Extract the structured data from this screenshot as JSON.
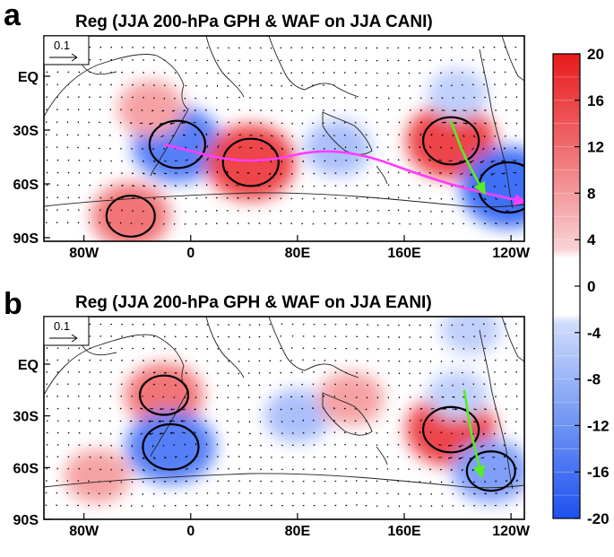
{
  "chart_data": [
    {
      "type": "heatmap",
      "panel_label": "a",
      "title": "Reg (JJA 200-hPa GPH & WAF on JJA CANI)",
      "x_tick_labels": [
        "80W",
        "0",
        "80E",
        "160E",
        "120W"
      ],
      "y_tick_labels": [
        "EQ",
        "30S",
        "60S",
        "90S"
      ],
      "reference_vector_label": "0.1",
      "anomaly_centers": [
        {
          "lon": -10,
          "lat": -38,
          "value": -16
        },
        {
          "lon": 45,
          "lat": -48,
          "value": 16
        },
        {
          "lon": 110,
          "lat": -40,
          "value": -8
        },
        {
          "lon": 195,
          "lat": -36,
          "value": 16
        },
        {
          "lon": 238,
          "lat": -62,
          "value": -18
        },
        {
          "lon": -45,
          "lat": -78,
          "value": 12
        },
        {
          "lon": -30,
          "lat": -18,
          "value": 8
        },
        {
          "lon": 200,
          "lat": -10,
          "value": -6
        }
      ],
      "wave_train_paths": [
        {
          "color": "#ff3cff",
          "points": [
            [
              -20,
              -38
            ],
            [
              45,
              -50
            ],
            [
              110,
              -38
            ],
            [
              190,
              -60
            ],
            [
              250,
              -70
            ]
          ]
        },
        {
          "color": "#55ee22",
          "points": [
            [
              195,
              -25
            ],
            [
              205,
              -45
            ],
            [
              220,
              -65
            ]
          ]
        }
      ]
    },
    {
      "type": "heatmap",
      "panel_label": "b",
      "title": "Reg (JJA 200-hPa GPH & WAF on JJA EANI)",
      "x_tick_labels": [
        "80W",
        "0",
        "80E",
        "160E",
        "120W"
      ],
      "y_tick_labels": [
        "EQ",
        "30S",
        "60S",
        "90S"
      ],
      "reference_vector_label": "0.1",
      "anomaly_centers": [
        {
          "lon": -20,
          "lat": -18,
          "value": 12
        },
        {
          "lon": -15,
          "lat": -48,
          "value": -16
        },
        {
          "lon": 80,
          "lat": -30,
          "value": -8
        },
        {
          "lon": 120,
          "lat": -20,
          "value": 8
        },
        {
          "lon": 195,
          "lat": -38,
          "value": 16
        },
        {
          "lon": 200,
          "lat": -18,
          "value": -6
        },
        {
          "lon": 210,
          "lat": 20,
          "value": -6
        },
        {
          "lon": 225,
          "lat": -62,
          "value": -12
        },
        {
          "lon": -70,
          "lat": -65,
          "value": 8
        },
        {
          "lon": 280,
          "lat": -75,
          "value": 8
        }
      ],
      "wave_train_paths": [
        {
          "color": "#55ee22",
          "points": [
            [
              205,
              -15
            ],
            [
              210,
              -40
            ],
            [
              218,
              -65
            ]
          ]
        }
      ]
    }
  ],
  "colorbar": {
    "min": -20,
    "max": 20,
    "tick_labels": [
      "20",
      "16",
      "12",
      "8",
      "4",
      "0",
      "-4",
      "-8",
      "-12",
      "-16",
      "-20"
    ],
    "positive_color": "#e8171c",
    "negative_color": "#2c5ff5"
  }
}
